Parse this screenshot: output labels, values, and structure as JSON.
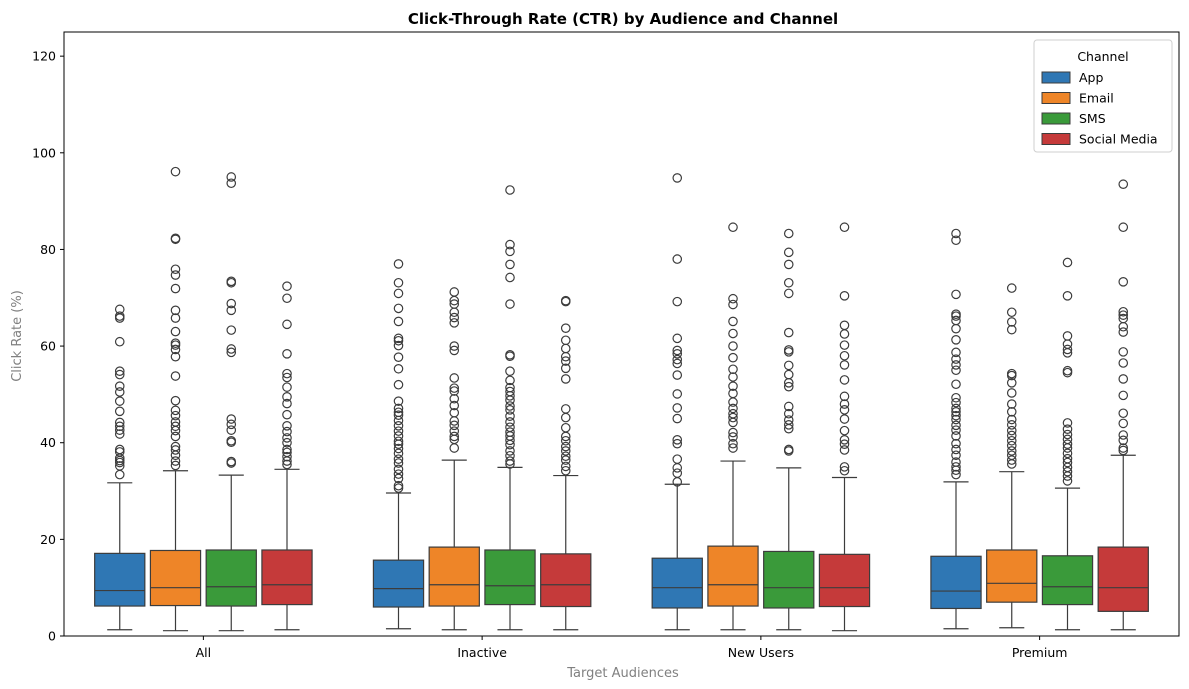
{
  "chart_data": {
    "type": "boxplot",
    "title": "Click-Through Rate (CTR) by Audience and Channel",
    "xlabel": "Target Audiences",
    "ylabel": "Click Rate (%)",
    "ylim": [
      0,
      125
    ],
    "yticks": [
      0,
      20,
      40,
      60,
      80,
      100,
      120
    ],
    "grid": false,
    "legend": {
      "title": "Channel",
      "position": "top-right"
    },
    "categories": [
      "All",
      "Inactive",
      "New Users",
      "Premium"
    ],
    "series": [
      {
        "name": "App",
        "color": "#2f77b4",
        "boxes": [
          {
            "min": 1.3,
            "q1": 6.2,
            "median": 9.4,
            "q3": 17.1,
            "max": 31.7,
            "outliers": [
              33.4,
              35.2,
              35.9,
              36.3,
              36.8,
              38.1,
              38.6,
              41.8,
              42.6,
              43.4,
              44.2,
              46.5,
              48.6,
              50.5,
              51.7,
              54.1,
              54.8,
              60.9,
              65.8,
              66.2,
              67.6
            ]
          },
          {
            "min": 1.5,
            "q1": 6.0,
            "median": 9.8,
            "q3": 15.7,
            "max": 29.6,
            "outliers": [
              30.6,
              31.1,
              32.6,
              33.5,
              34.5,
              35.8,
              36.6,
              37.8,
              38.8,
              39.7,
              40.3,
              41.4,
              42.4,
              43.5,
              44.6,
              45.7,
              46.3,
              47.1,
              48.6,
              52.0,
              55.3,
              57.7,
              60.1,
              61.1,
              61.6,
              65.1,
              67.8,
              70.9,
              73.1,
              77.0
            ]
          },
          {
            "min": 1.3,
            "q1": 5.8,
            "median": 10.0,
            "q3": 16.1,
            "max": 31.4,
            "outliers": [
              31.9,
              33.7,
              34.8,
              36.6,
              39.8,
              40.6,
              45.0,
              47.2,
              50.1,
              54.0,
              56.4,
              57.2,
              58.4,
              59.1,
              61.6,
              69.2,
              78.0,
              94.8
            ]
          },
          {
            "min": 1.5,
            "q1": 5.7,
            "median": 9.3,
            "q3": 16.5,
            "max": 31.9,
            "outliers": [
              33.4,
              34.3,
              35.0,
              36.0,
              37.4,
              38.6,
              39.8,
              41.4,
              42.6,
              43.6,
              44.8,
              45.6,
              46.4,
              47.1,
              48.3,
              49.3,
              52.1,
              55.0,
              56.1,
              57.3,
              58.7,
              61.3,
              63.6,
              65.3,
              66.2,
              66.6,
              70.7,
              81.9,
              83.3
            ]
          }
        ]
      },
      {
        "name": "Email",
        "color": "#ee8528",
        "boxes": [
          {
            "min": 1.1,
            "q1": 6.3,
            "median": 10.0,
            "q3": 17.7,
            "max": 34.2,
            "outliers": [
              35.3,
              36.2,
              37.4,
              38.5,
              39.2,
              41.3,
              42.5,
              43.4,
              44.3,
              45.6,
              46.7,
              48.7,
              53.8,
              57.8,
              59.3,
              60.2,
              60.6,
              63.0,
              65.8,
              67.4,
              71.9,
              74.7,
              75.9,
              82.1,
              82.3,
              96.1
            ]
          },
          {
            "min": 1.3,
            "q1": 6.2,
            "median": 10.6,
            "q3": 18.4,
            "max": 36.4,
            "outliers": [
              38.9,
              40.7,
              41.3,
              42.4,
              43.6,
              44.5,
              46.2,
              47.7,
              49.1,
              50.7,
              51.3,
              53.4,
              59.1,
              60.0,
              64.8,
              65.9,
              67.0,
              68.7,
              69.4,
              71.2
            ]
          },
          {
            "min": 1.3,
            "q1": 6.2,
            "median": 10.6,
            "q3": 18.6,
            "max": 36.2,
            "outliers": [
              38.9,
              39.8,
              41.2,
              42.1,
              44.2,
              45.2,
              46.0,
              47.1,
              48.4,
              50.2,
              51.7,
              53.6,
              55.2,
              57.6,
              60.0,
              62.6,
              65.1,
              68.6,
              69.8,
              84.6
            ]
          },
          {
            "min": 1.7,
            "q1": 7.0,
            "median": 10.9,
            "q3": 17.8,
            "max": 34.0,
            "outliers": [
              35.6,
              36.4,
              37.4,
              38.3,
              39.4,
              40.4,
              41.5,
              42.5,
              43.7,
              44.8,
              46.4,
              48.0,
              50.3,
              52.4,
              53.9,
              54.3,
              63.4,
              65.0,
              67.0,
              72.0
            ]
          }
        ]
      },
      {
        "name": "SMS",
        "color": "#3a9a3a",
        "boxes": [
          {
            "min": 1.1,
            "q1": 6.2,
            "median": 10.2,
            "q3": 17.8,
            "max": 33.3,
            "outliers": [
              35.8,
              36.1,
              40.1,
              40.4,
              42.6,
              43.8,
              44.9,
              58.7,
              59.4,
              63.3,
              67.4,
              68.8,
              73.1,
              73.4,
              93.7,
              95.0
            ]
          },
          {
            "min": 1.3,
            "q1": 6.5,
            "median": 10.4,
            "q3": 17.8,
            "max": 34.9,
            "outliers": [
              35.6,
              36.2,
              37.3,
              38.3,
              39.6,
              40.5,
              41.4,
              42.2,
              43.2,
              44.3,
              45.5,
              46.8,
              47.6,
              48.8,
              49.7,
              50.6,
              51.4,
              52.9,
              54.8,
              57.9,
              58.2,
              68.7,
              74.2,
              76.9,
              79.6,
              81.0,
              92.3
            ]
          },
          {
            "min": 1.3,
            "q1": 5.8,
            "median": 10.0,
            "q3": 17.5,
            "max": 34.8,
            "outliers": [
              38.3,
              38.6,
              42.9,
              43.7,
              44.7,
              46.0,
              47.5,
              51.6,
              52.4,
              54.1,
              56.0,
              58.8,
              59.2,
              62.8,
              70.9,
              73.1,
              76.9,
              79.4,
              83.3
            ]
          },
          {
            "min": 1.3,
            "q1": 6.5,
            "median": 10.2,
            "q3": 16.6,
            "max": 30.6,
            "outliers": [
              32.1,
              33.1,
              34.0,
              34.9,
              35.9,
              36.7,
              37.8,
              38.9,
              39.7,
              40.7,
              41.7,
              42.8,
              44.1,
              54.5,
              54.9,
              58.6,
              59.3,
              60.4,
              62.1,
              70.4,
              77.3
            ]
          }
        ]
      },
      {
        "name": "Social Media",
        "color": "#c53a3a",
        "boxes": [
          {
            "min": 1.3,
            "q1": 6.5,
            "median": 10.6,
            "q3": 17.8,
            "max": 34.5,
            "outliers": [
              35.5,
              36.2,
              37.1,
              38.0,
              38.6,
              40.0,
              41.0,
              42.3,
              43.5,
              45.8,
              48.1,
              49.5,
              51.5,
              53.5,
              54.3,
              58.4,
              64.5,
              69.9,
              72.4
            ]
          },
          {
            "min": 1.3,
            "q1": 6.1,
            "median": 10.6,
            "q3": 17.0,
            "max": 33.2,
            "outliers": [
              34.2,
              35.1,
              36.4,
              37.2,
              38.3,
              39.2,
              40.4,
              41.3,
              43.1,
              45.2,
              47.0,
              53.2,
              55.4,
              56.9,
              57.8,
              59.5,
              61.2,
              63.7,
              69.2,
              69.4
            ]
          },
          {
            "min": 1.1,
            "q1": 6.1,
            "median": 10.0,
            "q3": 16.9,
            "max": 32.8,
            "outliers": [
              34.2,
              35.0,
              38.5,
              39.7,
              40.6,
              42.5,
              44.9,
              46.8,
              48.0,
              49.6,
              53.0,
              56.1,
              58.0,
              60.2,
              62.5,
              64.3,
              70.4,
              84.6
            ]
          },
          {
            "min": 1.3,
            "q1": 5.1,
            "median": 10.0,
            "q3": 18.4,
            "max": 37.4,
            "outliers": [
              38.4,
              38.9,
              40.5,
              41.6,
              44.0,
              46.1,
              49.8,
              53.2,
              56.5,
              58.8,
              62.9,
              64.0,
              65.7,
              66.4,
              67.1,
              73.3,
              84.6,
              93.5
            ]
          }
        ]
      }
    ]
  }
}
